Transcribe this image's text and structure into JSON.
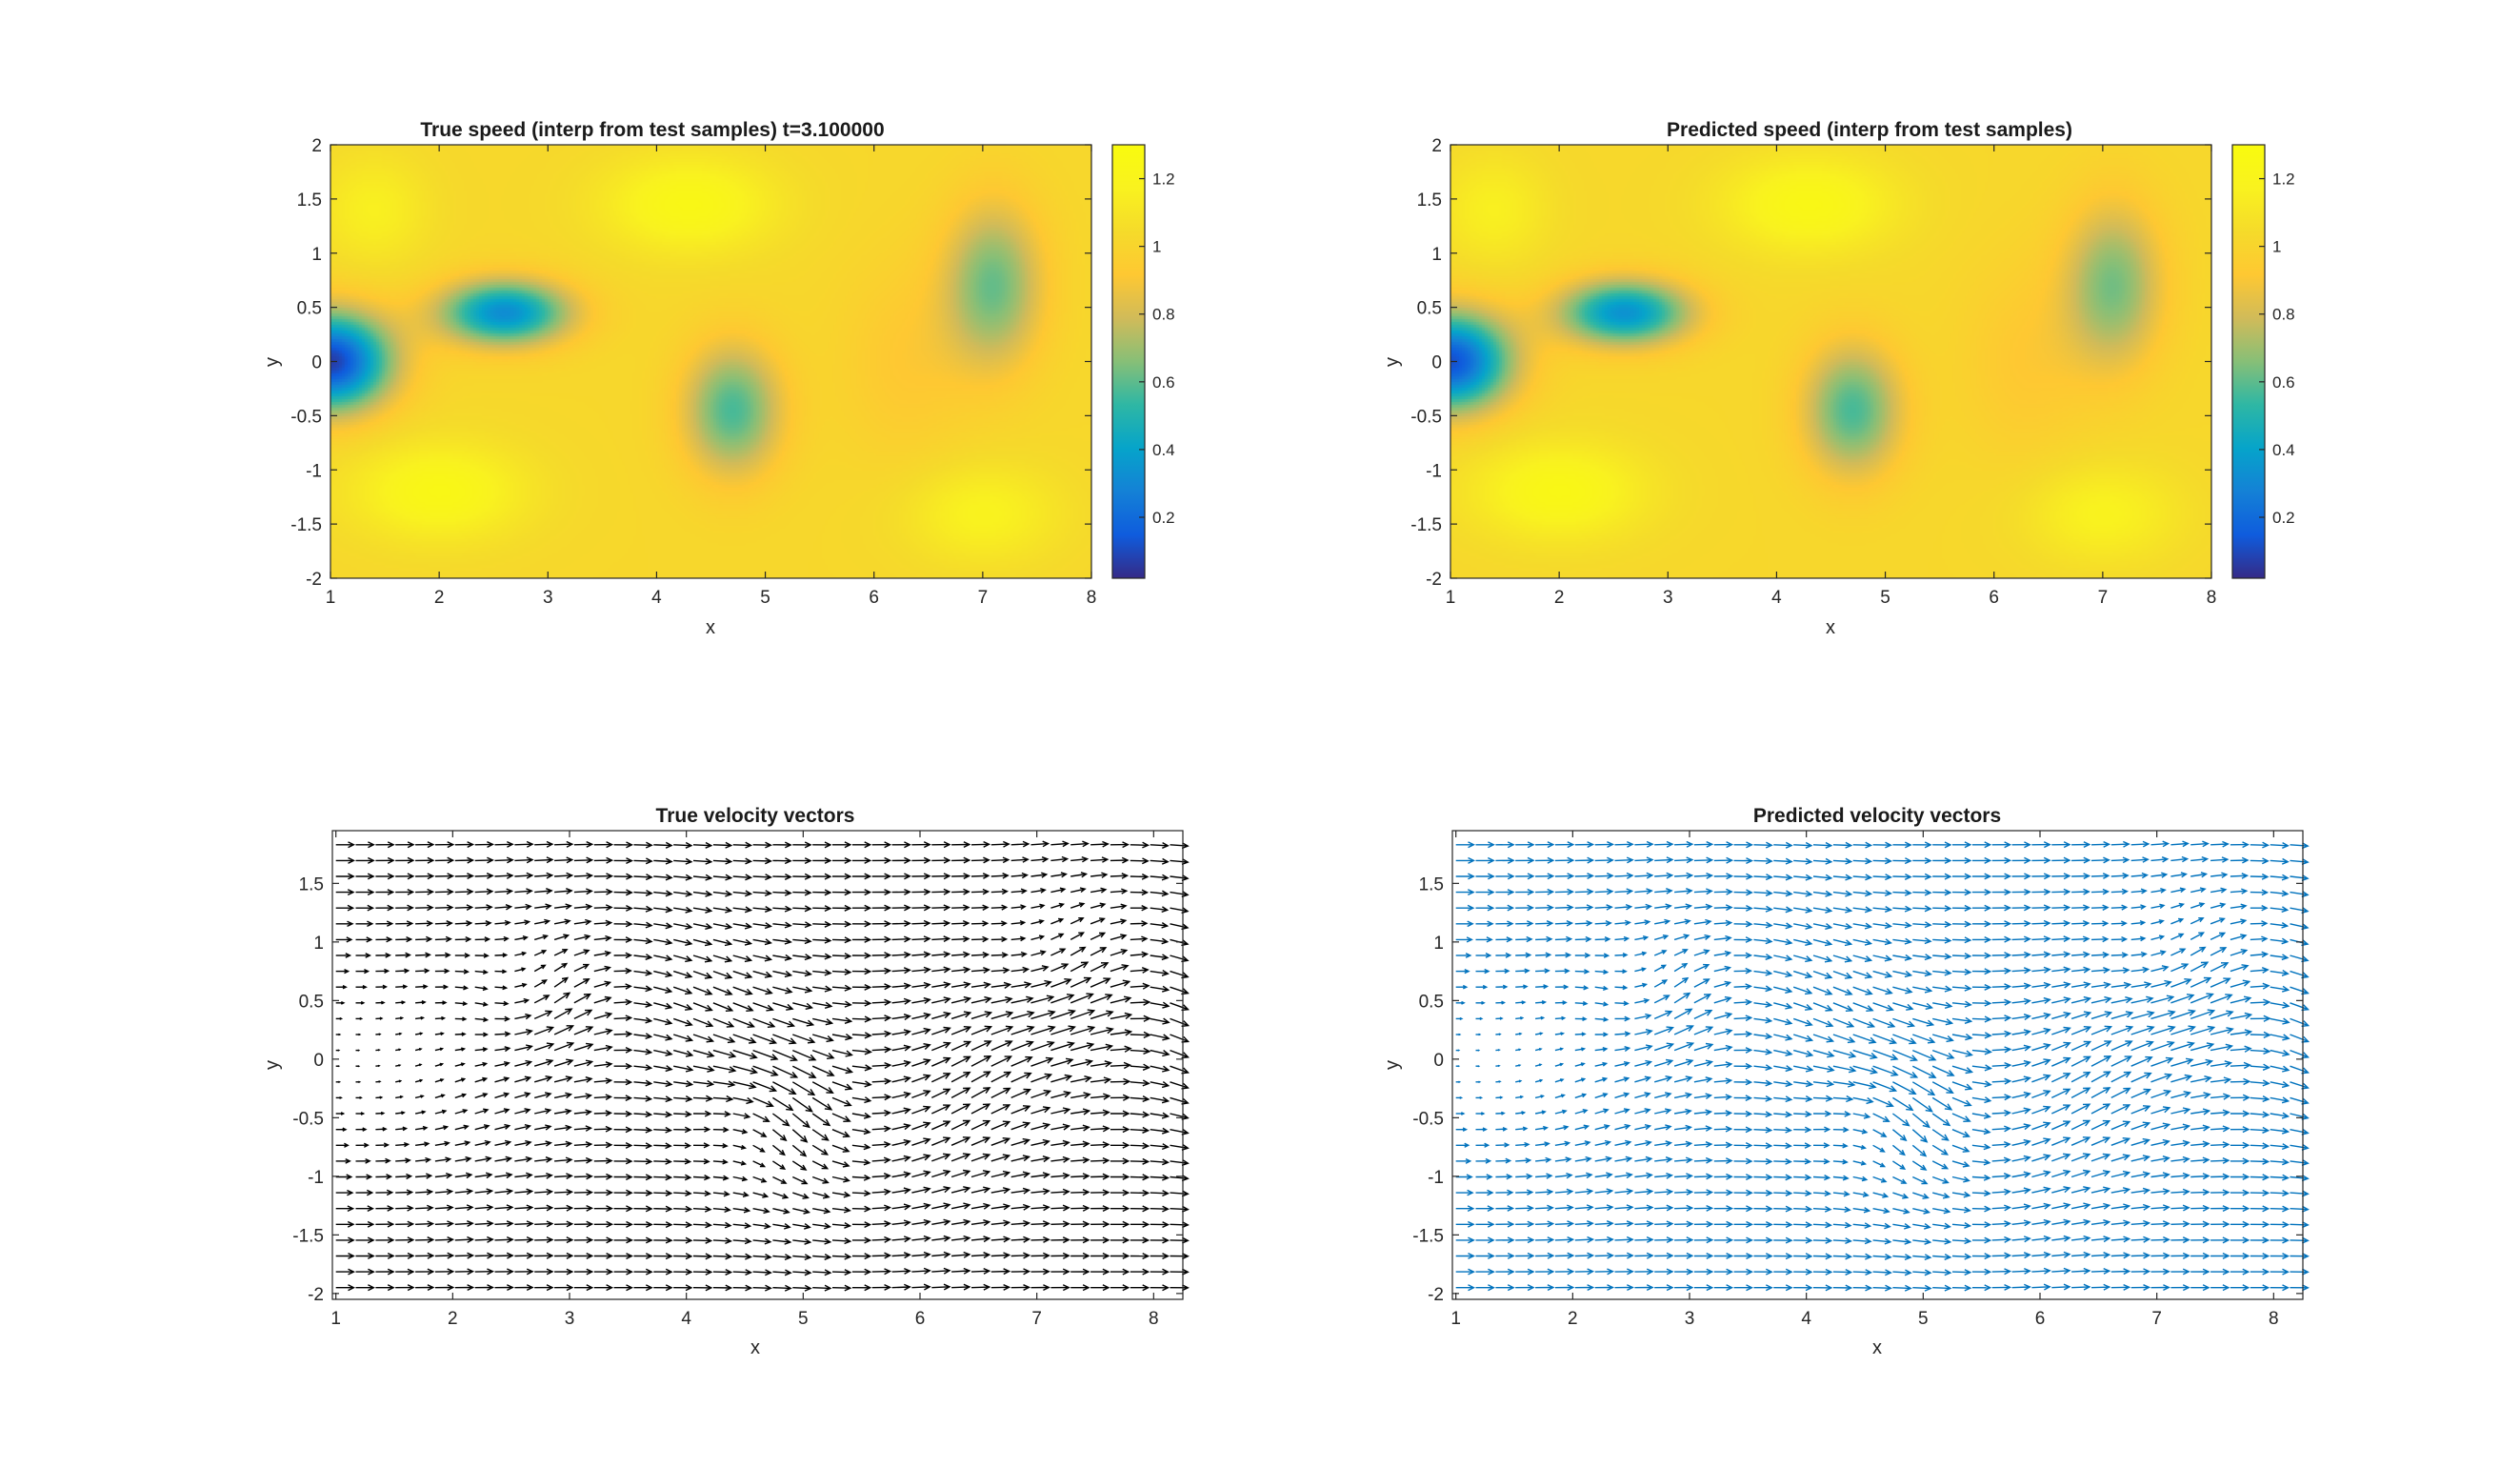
{
  "chart_data": [
    {
      "id": "true-speed",
      "type": "heatmap",
      "title": "True speed (interp from test samples) t=3.100000",
      "xlabel": "x",
      "ylabel": "y",
      "xlim": [
        1,
        8
      ],
      "ylim": [
        -2,
        2
      ],
      "xticks": [
        "1",
        "2",
        "3",
        "4",
        "5",
        "6",
        "7",
        "8"
      ],
      "yticks": [
        "2",
        "1.5",
        "1",
        "0.5",
        "0",
        "-0.5",
        "-1",
        "-1.5",
        "-2"
      ],
      "colorbar": {
        "range": [
          0.02,
          1.3
        ],
        "ticks": [
          "1.2",
          "1",
          "0.8",
          "0.6",
          "0.4",
          "0.2"
        ],
        "colormap": "parula"
      },
      "field": {
        "base_speed": 1.02,
        "features": [
          {
            "x": 1.0,
            "y": 0.0,
            "amp": -0.95,
            "sx": 0.55,
            "sy": 0.45
          },
          {
            "x": 2.6,
            "y": 0.45,
            "amp": -0.7,
            "sx": 0.6,
            "sy": 0.3
          },
          {
            "x": 4.7,
            "y": -0.45,
            "amp": -0.45,
            "sx": 0.45,
            "sy": 0.6
          },
          {
            "x": 7.1,
            "y": 0.7,
            "amp": -0.4,
            "sx": 0.45,
            "sy": 0.75
          },
          {
            "x": 4.3,
            "y": 1.45,
            "amp": 0.22,
            "sx": 0.8,
            "sy": 0.45
          },
          {
            "x": 2.0,
            "y": -1.2,
            "amp": 0.22,
            "sx": 0.8,
            "sy": 0.45
          },
          {
            "x": 1.4,
            "y": 1.4,
            "amp": 0.14,
            "sx": 0.5,
            "sy": 0.5
          },
          {
            "x": 7.0,
            "y": -1.4,
            "amp": 0.16,
            "sx": 0.7,
            "sy": 0.45
          },
          {
            "x": 6.3,
            "y": 0.0,
            "amp": -0.1,
            "sx": 0.6,
            "sy": 0.9
          }
        ]
      }
    },
    {
      "id": "predicted-speed",
      "type": "heatmap",
      "title": "Predicted speed (interp from test samples)",
      "xlabel": "x",
      "ylabel": "y",
      "xlim": [
        1,
        8
      ],
      "ylim": [
        -2,
        2
      ],
      "xticks": [
        "1",
        "2",
        "3",
        "4",
        "5",
        "6",
        "7",
        "8"
      ],
      "yticks": [
        "2",
        "1.5",
        "1",
        "0.5",
        "0",
        "-0.5",
        "-1",
        "-1.5",
        "-2"
      ],
      "colorbar": {
        "range": [
          0.02,
          1.3
        ],
        "ticks": [
          "1.2",
          "1",
          "0.8",
          "0.6",
          "0.4",
          "0.2"
        ],
        "colormap": "parula"
      },
      "field": {
        "base_speed": 1.02,
        "features": [
          {
            "x": 1.0,
            "y": 0.0,
            "amp": -0.9,
            "sx": 0.55,
            "sy": 0.45
          },
          {
            "x": 2.6,
            "y": 0.45,
            "amp": -0.68,
            "sx": 0.6,
            "sy": 0.3
          },
          {
            "x": 4.7,
            "y": -0.45,
            "amp": -0.45,
            "sx": 0.45,
            "sy": 0.6
          },
          {
            "x": 7.1,
            "y": 0.7,
            "amp": -0.38,
            "sx": 0.45,
            "sy": 0.75
          },
          {
            "x": 4.3,
            "y": 1.45,
            "amp": 0.22,
            "sx": 0.8,
            "sy": 0.45
          },
          {
            "x": 2.0,
            "y": -1.2,
            "amp": 0.22,
            "sx": 0.8,
            "sy": 0.45
          },
          {
            "x": 1.4,
            "y": 1.4,
            "amp": 0.14,
            "sx": 0.5,
            "sy": 0.5
          },
          {
            "x": 7.0,
            "y": -1.4,
            "amp": 0.16,
            "sx": 0.7,
            "sy": 0.45
          },
          {
            "x": 6.3,
            "y": 0.0,
            "amp": -0.1,
            "sx": 0.6,
            "sy": 0.9
          }
        ]
      }
    },
    {
      "id": "true-velocity",
      "type": "quiver",
      "title": "True velocity vectors",
      "xlabel": "x",
      "ylabel": "y",
      "xlim": [
        0.97,
        8.25
      ],
      "ylim": [
        -2.05,
        1.95
      ],
      "xticks": [
        "1",
        "2",
        "3",
        "4",
        "5",
        "6",
        "7",
        "8"
      ],
      "yticks": [
        "1.5",
        "1",
        "0.5",
        "0",
        "-0.5",
        "-1",
        "-1.5",
        "-2"
      ],
      "arrow_color": "#000000",
      "grid": {
        "x0": 1.0,
        "dx": 0.17,
        "nx": 43,
        "y0": -1.95,
        "dy": 0.135,
        "ny": 29
      },
      "field": {
        "wave_amp": 0.5,
        "wave_k": 1.45,
        "wave_phase": 3.2,
        "wave_decay": 1.9,
        "wake_x": 1.0,
        "wake_y": 0.0,
        "wake_sx": 1.5,
        "wake_sy": 0.75,
        "vortices": [
          {
            "x": 2.6,
            "y": 0.45,
            "strength": 0.55,
            "r": 0.5
          },
          {
            "x": 4.6,
            "y": -0.4,
            "strength": -0.55,
            "r": 0.55
          },
          {
            "x": 7.1,
            "y": 0.7,
            "strength": 0.5,
            "r": 0.6
          }
        ]
      }
    },
    {
      "id": "predicted-velocity",
      "type": "quiver",
      "title": "Predicted velocity vectors",
      "xlabel": "x",
      "ylabel": "y",
      "xlim": [
        0.97,
        8.25
      ],
      "ylim": [
        -2.05,
        1.95
      ],
      "xticks": [
        "1",
        "2",
        "3",
        "4",
        "5",
        "6",
        "7",
        "8"
      ],
      "yticks": [
        "1.5",
        "1",
        "0.5",
        "0",
        "-0.5",
        "-1",
        "-1.5",
        "-2"
      ],
      "arrow_color": "#0072BD",
      "grid": {
        "x0": 1.0,
        "dx": 0.17,
        "nx": 43,
        "y0": -1.95,
        "dy": 0.135,
        "ny": 29
      },
      "field": {
        "wave_amp": 0.5,
        "wave_k": 1.45,
        "wave_phase": 3.2,
        "wave_decay": 1.9,
        "wake_x": 1.0,
        "wake_y": 0.0,
        "wake_sx": 1.5,
        "wake_sy": 0.72,
        "vortices": [
          {
            "x": 2.6,
            "y": 0.45,
            "strength": 0.53,
            "r": 0.5
          },
          {
            "x": 4.6,
            "y": -0.4,
            "strength": -0.55,
            "r": 0.55
          },
          {
            "x": 7.1,
            "y": 0.7,
            "strength": 0.5,
            "r": 0.6
          }
        ]
      }
    }
  ]
}
